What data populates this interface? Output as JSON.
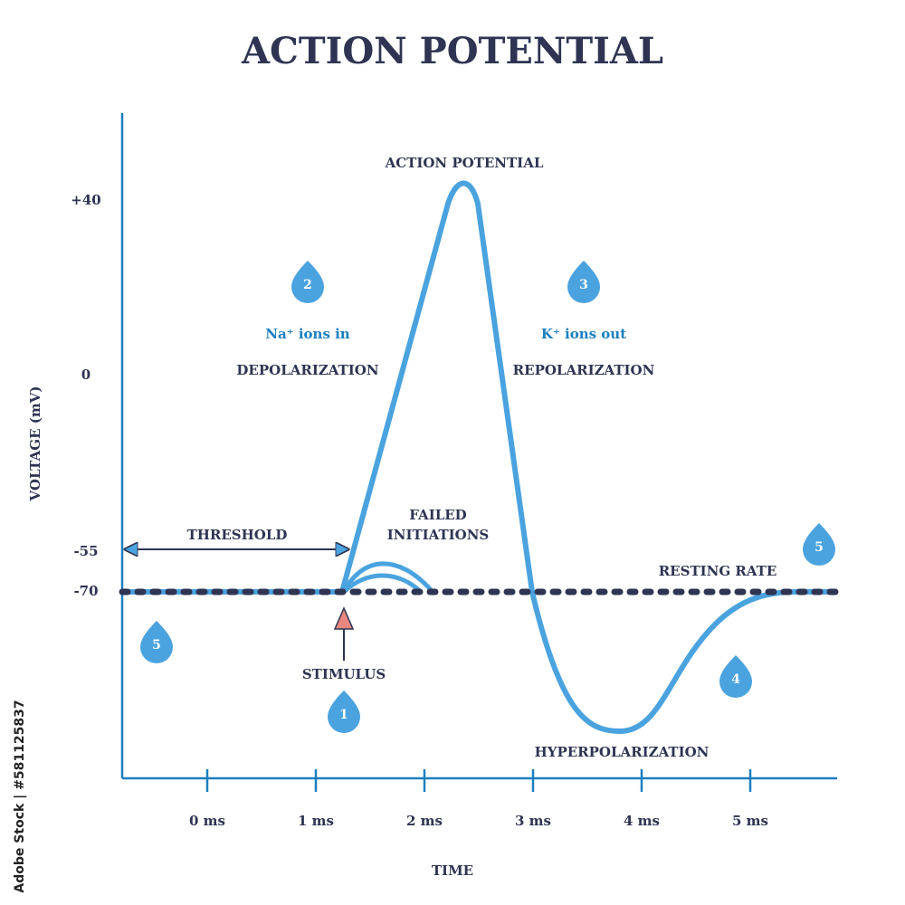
{
  "title": "ACTION POTENTIAL",
  "y_axis": {
    "label": "VOLTAGE (mV)",
    "ticks": [
      "+40",
      "0",
      "-55",
      "-70"
    ]
  },
  "x_axis": {
    "label": "TIME",
    "ticks": [
      "0 ms",
      "1 ms",
      "2 ms",
      "3 ms",
      "4 ms",
      "5 ms"
    ]
  },
  "annotations": {
    "peak": "ACTION POTENTIAL",
    "na_ions": "Na⁺ ions in",
    "depolarization": "DEPOLARIZATION",
    "k_ions": "K⁺ ions out",
    "repolarization": "REPOLARIZATION",
    "threshold": "THRESHOLD",
    "failed_initiations": [
      "FAILED",
      "INITIATIONS"
    ],
    "resting_rate": "RESTING RATE",
    "stimulus": "STIMULUS",
    "hyperpolarization": "HYPERPOLARIZATION"
  },
  "markers": [
    "1",
    "2",
    "3",
    "4",
    "5",
    "5"
  ],
  "watermark": "Adobe Stock | #581125837"
}
